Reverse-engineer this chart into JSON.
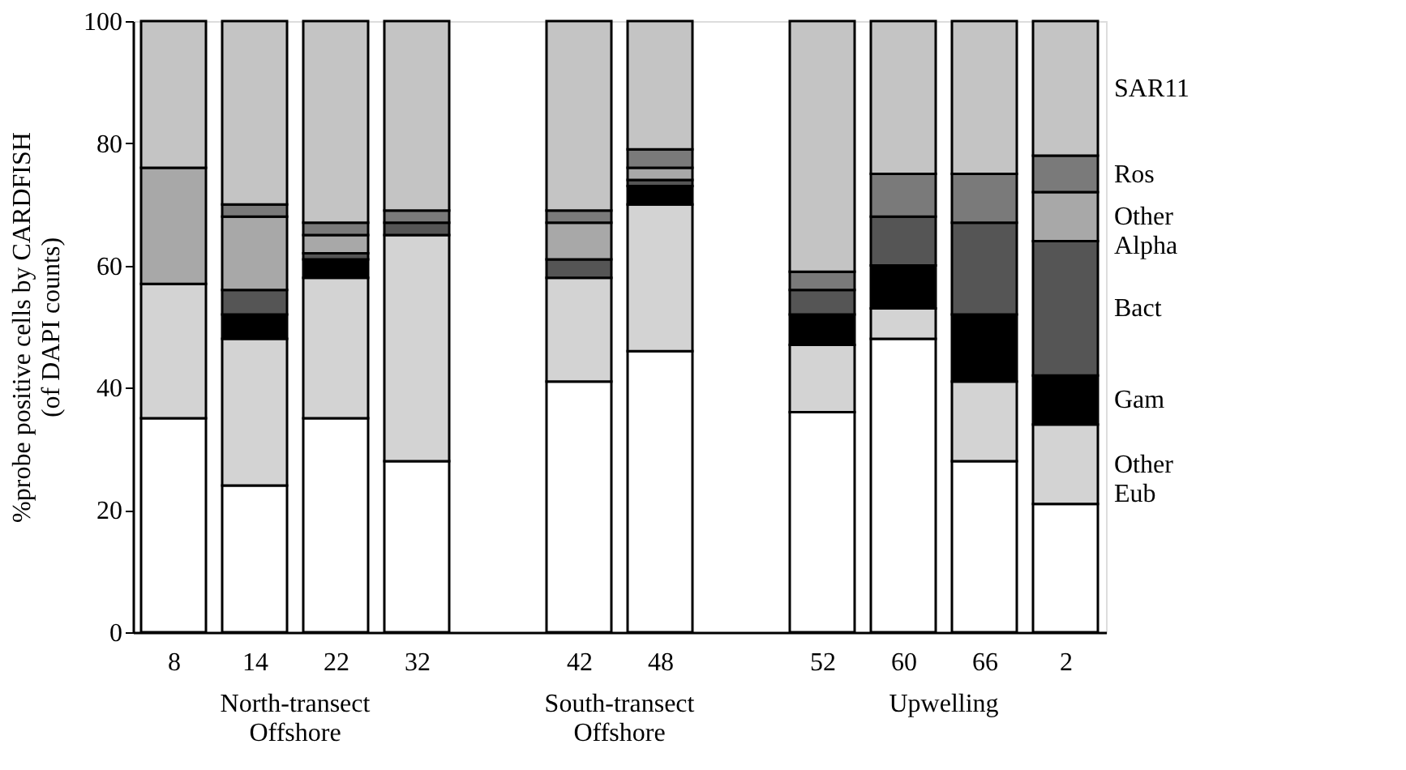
{
  "chart_data": {
    "type": "bar",
    "stacked": true,
    "ylabel": "%probe positive cells by CARDFISH\n(of DAPI counts)",
    "categories": [
      "8",
      "14",
      "22",
      "32",
      null,
      "42",
      "48",
      null,
      "52",
      "60",
      "66",
      "2"
    ],
    "series": [
      {
        "color": "#ffffff",
        "values": [
          35,
          24,
          35,
          28,
          null,
          41,
          46,
          null,
          36,
          48,
          28,
          21
        ]
      },
      {
        "name": "Other\nEub",
        "color": "#d3d3d3",
        "values": [
          22,
          24,
          23,
          37,
          null,
          17,
          24,
          null,
          11,
          5,
          13,
          13
        ]
      },
      {
        "name": "Gam",
        "color": "#000000",
        "values": [
          0,
          4,
          3,
          0,
          null,
          0,
          3,
          null,
          5,
          7,
          11,
          8
        ]
      },
      {
        "name": "Bact",
        "color": "#555555",
        "values": [
          0,
          4,
          1,
          2,
          null,
          3,
          1,
          null,
          4,
          8,
          15,
          22
        ]
      },
      {
        "name": "Other\nAlpha",
        "color": "#a8a8a8",
        "values": [
          19,
          12,
          3,
          0,
          null,
          6,
          2,
          null,
          0,
          0,
          0,
          8
        ]
      },
      {
        "name": "Ros",
        "color": "#7a7a7a",
        "values": [
          0,
          2,
          2,
          2,
          null,
          2,
          3,
          null,
          3,
          7,
          8,
          6
        ]
      },
      {
        "name": "SAR11",
        "color": "#c4c4c4",
        "values": [
          24,
          30,
          33,
          31,
          null,
          31,
          21,
          null,
          41,
          25,
          25,
          22
        ]
      }
    ],
    "ylim": [
      0,
      100
    ],
    "yticks": [
      0,
      20,
      40,
      60,
      80,
      100
    ],
    "grid": false,
    "legend": false,
    "annotations": [
      "North-transect\nOffshore",
      "South-transect\nOffshore",
      "Upwelling"
    ]
  }
}
